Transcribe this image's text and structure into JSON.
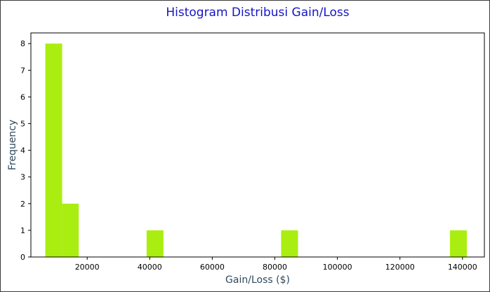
{
  "chart_data": {
    "type": "bar",
    "title": "Histogram Distribusi Gain/Loss",
    "xlabel": "Gain/Loss ($)",
    "ylabel": "Frequency",
    "bins": [
      {
        "x0": 6600,
        "x1": 12000,
        "count": 8
      },
      {
        "x0": 12000,
        "x1": 17300,
        "count": 2
      },
      {
        "x0": 39000,
        "x1": 44400,
        "count": 1
      },
      {
        "x0": 82000,
        "x1": 87400,
        "count": 1
      },
      {
        "x0": 136000,
        "x1": 141400,
        "count": 1
      }
    ],
    "xticks": [
      20000,
      40000,
      60000,
      80000,
      100000,
      120000,
      140000
    ],
    "yticks": [
      0,
      1,
      2,
      3,
      4,
      5,
      6,
      7,
      8
    ],
    "xlim": [
      2000,
      147000
    ],
    "ylim": [
      0,
      8.4
    ],
    "grid": false,
    "colors": {
      "bar": "#aaee11",
      "title": "#1515c8",
      "axis_label": "#2e4a5e"
    }
  }
}
